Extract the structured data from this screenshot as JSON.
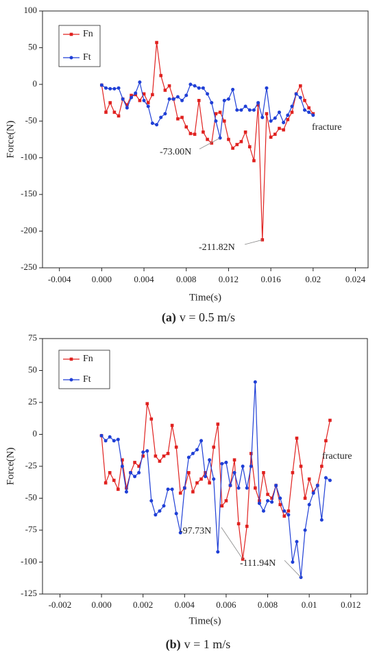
{
  "chart_data": [
    {
      "type": "line",
      "x_label": "Time(s)",
      "y_label": "Force(N)",
      "caption": {
        "label": "(a)",
        "text": "v = 0.5 m/s"
      },
      "xlim": [
        -0.0056,
        0.0252
      ],
      "xticks": [
        -0.004,
        {
          "value": 0,
          "label": "0.000"
        },
        0.004,
        0.008,
        0.012,
        0.016,
        0.02,
        0.024
      ],
      "ylim": [
        -250,
        100
      ],
      "yticks": [
        -250,
        -200,
        -150,
        -100,
        -50,
        0,
        50,
        100
      ],
      "legend": "upper left",
      "x": [
        0,
        0.0004,
        0.0008,
        0.0012,
        0.0016,
        0.002,
        0.0024,
        0.0028,
        0.0032,
        0.0036,
        0.004,
        0.0044,
        0.0048,
        0.0052,
        0.0056,
        0.006,
        0.0064,
        0.0068,
        0.0072,
        0.0076,
        0.008,
        0.0084,
        0.0088,
        0.0092,
        0.0096,
        0.01,
        0.0104,
        0.0108,
        0.0112,
        0.0116,
        0.012,
        0.0124,
        0.0128,
        0.0132,
        0.0136,
        0.014,
        0.0144,
        0.0148,
        0.0152,
        0.0156,
        0.016,
        0.0164,
        0.0168,
        0.0172,
        0.0176,
        0.018,
        0.0184,
        0.0188,
        0.0192,
        0.0196,
        0.02
      ],
      "series": [
        {
          "name": "Fn",
          "color": "#e0211f",
          "marker": "square",
          "values": [
            -1,
            -38,
            -25,
            -38,
            -43,
            -20,
            -28,
            -15,
            -14,
            -22,
            -13,
            -25,
            -14,
            57,
            12,
            -8,
            -2,
            -20,
            -47,
            -45,
            -58,
            -67,
            -68,
            -22,
            -65,
            -75,
            -80,
            -40,
            -38,
            -50,
            -75,
            -87,
            -82,
            -78,
            -65,
            -85,
            -104,
            -28,
            -211.82,
            -40,
            -72,
            -68,
            -60,
            -62,
            -48,
            -38,
            -13,
            -2,
            -22,
            -32,
            -40
          ]
        },
        {
          "name": "Ft",
          "color": "#1f3fd6",
          "marker": "circle",
          "values": [
            -1,
            -5,
            -6,
            -6,
            -5,
            -20,
            -32,
            -18,
            -12,
            3,
            -22,
            -30,
            -53,
            -55,
            -45,
            -40,
            -20,
            -20,
            -17,
            -22,
            -15,
            0,
            -2,
            -5,
            -5,
            -13,
            -25,
            -50,
            -73,
            -22,
            -20,
            -7,
            -35,
            -35,
            -30,
            -35,
            -35,
            -25,
            -45,
            -5,
            -50,
            -46,
            -38,
            -52,
            -42,
            -30,
            -13,
            -18,
            -35,
            -38,
            -42
          ]
        }
      ],
      "annotations": [
        "-73.00N",
        "-211.82N",
        "fracture"
      ]
    },
    {
      "type": "line",
      "x_label": "Time(s)",
      "y_label": "Force(N)",
      "caption": {
        "label": "(b)",
        "text": "v = 1 m/s"
      },
      "xlim": [
        -0.00284,
        0.0128
      ],
      "xticks": [
        -0.002,
        {
          "value": 0,
          "label": "0.000"
        },
        0.002,
        0.004,
        0.006,
        0.008,
        0.01,
        0.012
      ],
      "ylim": [
        -125,
        75
      ],
      "yticks": [
        -125,
        -100,
        -75,
        -50,
        -25,
        0,
        25,
        50,
        75
      ],
      "legend": "upper left",
      "x": [
        0,
        0.0002,
        0.0004,
        0.0006,
        0.0008,
        0.001,
        0.0012,
        0.0014,
        0.0016,
        0.0018,
        0.002,
        0.0022,
        0.0024,
        0.0026,
        0.0028,
        0.003,
        0.0032,
        0.0034,
        0.0036,
        0.0038,
        0.004,
        0.0042,
        0.0044,
        0.0046,
        0.0048,
        0.005,
        0.0052,
        0.0054,
        0.0056,
        0.0058,
        0.006,
        0.0062,
        0.0064,
        0.0066,
        0.0068,
        0.007,
        0.0072,
        0.0074,
        0.0076,
        0.0078,
        0.008,
        0.0082,
        0.0084,
        0.0086,
        0.0088,
        0.009,
        0.0092,
        0.0094,
        0.0096,
        0.0098,
        0.01,
        0.0102,
        0.0104,
        0.0106,
        0.0108,
        0.011
      ],
      "series": [
        {
          "name": "Fn",
          "color": "#e0211f",
          "marker": "square",
          "values": [
            -1,
            -38,
            -30,
            -36,
            -43,
            -20,
            -42,
            -30,
            -22,
            -25,
            -17,
            24,
            12,
            -17,
            -21,
            -17,
            -15,
            7,
            -10,
            -46,
            -42,
            -30,
            -45,
            -38,
            -35,
            -30,
            -38,
            -10,
            8,
            -56,
            -52,
            -40,
            -20,
            -70,
            -97.73,
            -72,
            -15,
            -42,
            -52,
            -30,
            -47,
            -50,
            -40,
            -55,
            -64,
            -60,
            -30,
            -3,
            -25,
            -50,
            -35,
            -45,
            -40,
            -25,
            -5,
            11
          ]
        },
        {
          "name": "Ft",
          "color": "#1f3fd6",
          "marker": "circle",
          "values": [
            -1,
            -5,
            -2,
            -5,
            -4,
            -25,
            -45,
            -30,
            -33,
            -30,
            -14,
            -13,
            -52,
            -63,
            -60,
            -56,
            -43,
            -43,
            -62,
            -77,
            -42,
            -18,
            -15,
            -12,
            -5,
            -33,
            -20,
            -35,
            -92,
            -23,
            -22,
            -40,
            -30,
            -42,
            -25,
            -42,
            -25,
            41,
            -54,
            -60,
            -52,
            -53,
            -40,
            -50,
            -60,
            -63,
            -100,
            -84,
            -111.94,
            -75,
            -55,
            -46,
            -40,
            -67,
            -34,
            -36
          ]
        }
      ],
      "annotations": [
        "-97.73N",
        "-111.94N",
        "fracture"
      ]
    }
  ]
}
